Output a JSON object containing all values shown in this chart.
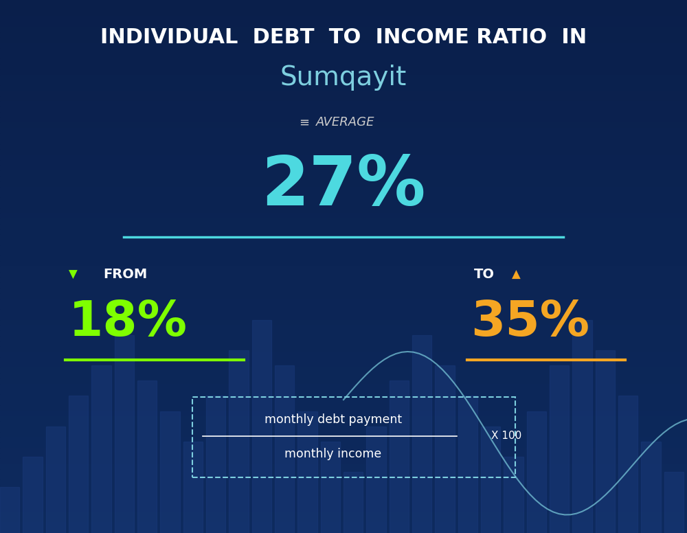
{
  "title_line1": "INDIVIDUAL  DEBT  TO  INCOME RATIO  IN",
  "title_line2": "Sumqayit",
  "avg_label": "AVERAGE",
  "avg_value": "27%",
  "from_label": "FROM",
  "from_value": "18%",
  "to_label": "TO",
  "to_value": "35%",
  "formula_numerator": "monthly debt payment",
  "formula_denominator": "monthly income",
  "formula_multiplier": "X 100",
  "bg_color_top": "#0a1f4b",
  "bg_color_bottom": "#0d2a5e",
  "avg_color": "#4dd9e0",
  "from_color": "#7fff00",
  "to_color": "#f5a623",
  "title_color": "#ffffff",
  "subtitle_color": "#7ecfdf",
  "avg_label_color": "#cccccc",
  "formula_color": "#ffffff",
  "underline_avg_color": "#4dd9e0",
  "underline_from_color": "#7fff00",
  "underline_to_color": "#f5a623",
  "bar_chart_bars": [
    3,
    5,
    7,
    9,
    11,
    13,
    10,
    8,
    6,
    9,
    12,
    14,
    11,
    8,
    6,
    4,
    7,
    10,
    13,
    11,
    9,
    7,
    5,
    8,
    11,
    14,
    12,
    9,
    6,
    4
  ],
  "bar_color": "#1a3a6b",
  "line_chart_color": "#7ecfdf",
  "dashed_border_color": "#7ecfdf"
}
